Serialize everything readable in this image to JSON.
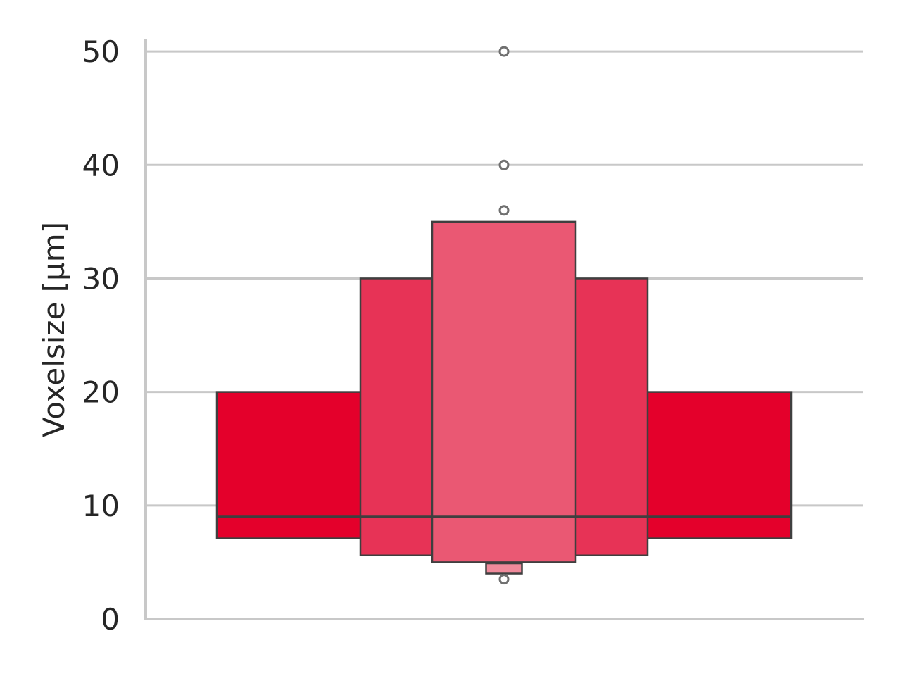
{
  "chart_data": {
    "type": "boxen",
    "title": "",
    "xlabel": "",
    "ylabel": "Voxelsize [µm]",
    "ylim": [
      0,
      51
    ],
    "yticks": [
      0,
      10,
      20,
      30,
      40,
      50
    ],
    "grid": "horizontal",
    "median": 9,
    "boxes": [
      {
        "lower": 7.1,
        "upper": 20,
        "color": "#e4002b",
        "width_fraction": 0.8
      },
      {
        "lower": 5.6,
        "upper": 30,
        "color": "#e73356",
        "width_fraction": 0.4
      },
      {
        "lower": 5.0,
        "upper": 35,
        "color": "#ea5873",
        "width_fraction": 0.2
      },
      {
        "lower": 4.0,
        "upper": 4.9,
        "color": "#f08a9b",
        "width_fraction": 0.05
      }
    ],
    "outliers": [
      50,
      40,
      36,
      3.5
    ],
    "colors": {
      "axis": "#c8c8c8",
      "grid": "#c8c8c8",
      "edge": "#3f3f3f",
      "outlier": "#707070"
    }
  }
}
